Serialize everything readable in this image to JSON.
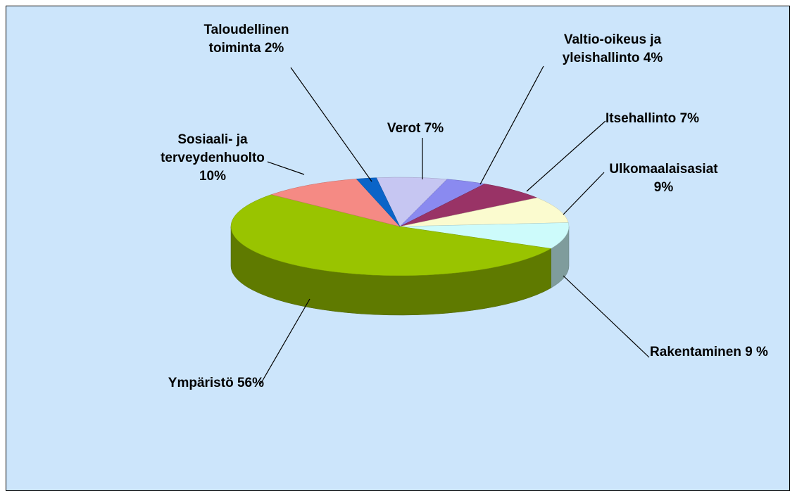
{
  "chart_data": {
    "type": "pie",
    "categories": [
      "Verot",
      "Valtio-oikeus ja yleishallinto",
      "Itsehallinto",
      "Ulkomaalaisasiat",
      "Rakentaminen",
      "Ympäristö",
      "Sosiaali- ja terveydenhuolto",
      "Taloudellinen toiminta"
    ],
    "values": [
      7,
      4,
      7,
      9,
      9,
      56,
      10,
      2
    ],
    "value_labels": [
      "7%",
      "4%",
      "7%",
      "9%",
      "9 %",
      "56%",
      "10%",
      "2%"
    ],
    "colors": [
      "#c6c6f2",
      "#8a8af0",
      "#993366",
      "#fbfbcf",
      "#cdfbfb",
      "#99c400",
      "#f58a84",
      "#0a64c8"
    ]
  }
}
